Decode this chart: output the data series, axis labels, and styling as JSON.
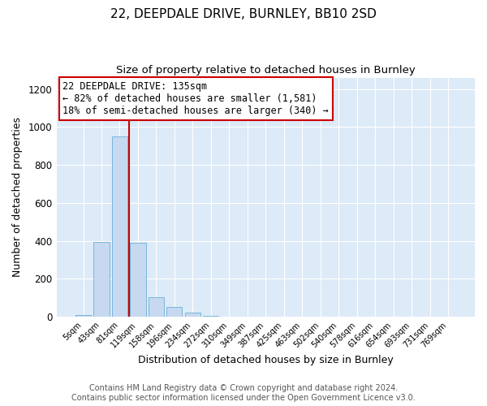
{
  "title": "22, DEEPDALE DRIVE, BURNLEY, BB10 2SD",
  "subtitle": "Size of property relative to detached houses in Burnley",
  "xlabel": "Distribution of detached houses by size in Burnley",
  "ylabel": "Number of detached properties",
  "bar_labels": [
    "5sqm",
    "43sqm",
    "81sqm",
    "119sqm",
    "158sqm",
    "196sqm",
    "234sqm",
    "272sqm",
    "310sqm",
    "349sqm",
    "387sqm",
    "425sqm",
    "463sqm",
    "502sqm",
    "540sqm",
    "578sqm",
    "616sqm",
    "654sqm",
    "693sqm",
    "731sqm",
    "769sqm"
  ],
  "bar_values": [
    10,
    395,
    950,
    390,
    105,
    52,
    22,
    5,
    2,
    0,
    0,
    0,
    0,
    0,
    0,
    0,
    0,
    0,
    0,
    0,
    0
  ],
  "bar_color": "#c6d9f0",
  "bar_edgecolor": "#6baed6",
  "vline_color": "#cc0000",
  "vline_x": 2.5,
  "annotation_box_text": "22 DEEPDALE DRIVE: 135sqm\n← 82% of detached houses are smaller (1,581)\n18% of semi-detached houses are larger (340) →",
  "ylim": [
    0,
    1260
  ],
  "yticks": [
    0,
    200,
    400,
    600,
    800,
    1000,
    1200
  ],
  "footer_line1": "Contains HM Land Registry data © Crown copyright and database right 2024.",
  "footer_line2": "Contains public sector information licensed under the Open Government Licence v3.0.",
  "plot_background": "#ddeaf7",
  "fig_background": "#ffffff",
  "grid_color": "#ffffff",
  "title_fontsize": 11,
  "subtitle_fontsize": 9.5,
  "annotation_fontsize": 8.5,
  "footer_fontsize": 7,
  "xlabel_fontsize": 9,
  "ylabel_fontsize": 9
}
